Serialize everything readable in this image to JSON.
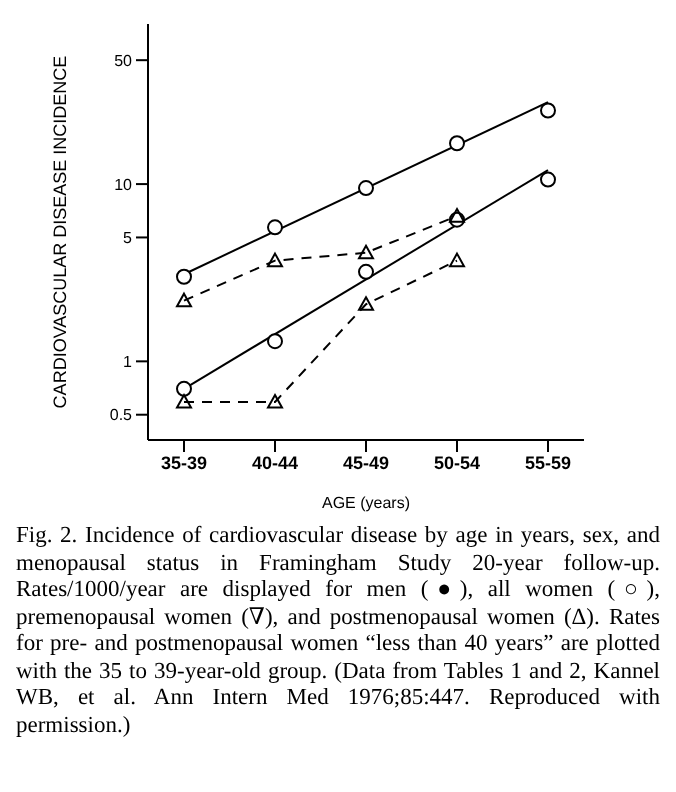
{
  "chart_data": {
    "type": "line",
    "xlabel": "AGE (years)",
    "ylabel": "CARDIOVASCULAR DISEASE INCIDENCE",
    "categories": [
      "35-39",
      "40-44",
      "45-49",
      "50-54",
      "55-59"
    ],
    "log": "y",
    "ylim": [
      0.36,
      80
    ],
    "yticks": [
      0.5,
      1,
      5,
      10,
      50
    ],
    "grid": false,
    "series": [
      {
        "type": "scatter",
        "color": "#000000",
        "marker": "circle",
        "values": [
          3.0,
          5.7,
          9.5,
          17,
          26
        ]
      },
      {
        "color": "#000000",
        "marker": "none",
        "line_style": "solid",
        "values": [
          3.1,
          null,
          null,
          null,
          29
        ]
      },
      {
        "type": "scatter",
        "color": "#000000",
        "marker": "circle",
        "values": [
          0.7,
          1.3,
          3.2,
          6.3,
          10.6
        ]
      },
      {
        "color": "#000000",
        "marker": "none",
        "line_style": "solid",
        "values": [
          0.7,
          null,
          null,
          null,
          12
        ]
      },
      {
        "color": "#000000",
        "marker": "triangle",
        "line_style": "dashed",
        "values": [
          2.2,
          3.7,
          4.1,
          6.6,
          null
        ]
      },
      {
        "color": "#000000",
        "marker": "triangle",
        "line_style": "dashed",
        "values": [
          0.59,
          0.59,
          2.1,
          3.7,
          null
        ]
      }
    ],
    "annotations": [
      "Fig. 2. Incidence of cardiovascular disease by age in years, sex, and menopausal status in Framingham Study 20-year follow-up. Rates/1000/year are displayed for men (●), all women (○), premenopausal women (∇), and postmenopausal women (Δ). Rates for pre- and postmenopausal women “less than 40 years” are plotted with the 35 to 39-year-old group. (Data from Tables 1 and 2, Kannel WB, et al. Ann Intern Med 1976;85:447. Reproduced with permission.)"
    ]
  }
}
